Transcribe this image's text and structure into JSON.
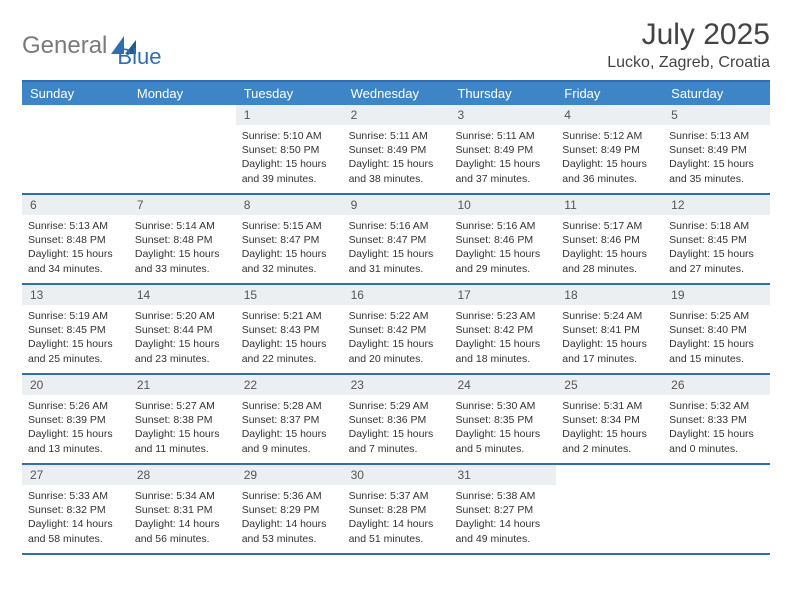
{
  "logo": {
    "gray": "General",
    "blue": "Blue"
  },
  "title": "July 2025",
  "location": "Lucko, Zagreb, Croatia",
  "colors": {
    "header_bg": "#3d85c6",
    "border": "#2f6fb0",
    "daynum_bg": "#eceff1",
    "logo_gray": "#7a7a7a",
    "logo_blue": "#2f6fb0"
  },
  "day_headers": [
    "Sunday",
    "Monday",
    "Tuesday",
    "Wednesday",
    "Thursday",
    "Friday",
    "Saturday"
  ],
  "weeks": [
    [
      {
        "num": "",
        "sunrise": "",
        "sunset": "",
        "daylight": ""
      },
      {
        "num": "",
        "sunrise": "",
        "sunset": "",
        "daylight": ""
      },
      {
        "num": "1",
        "sunrise": "Sunrise: 5:10 AM",
        "sunset": "Sunset: 8:50 PM",
        "daylight": "Daylight: 15 hours and 39 minutes."
      },
      {
        "num": "2",
        "sunrise": "Sunrise: 5:11 AM",
        "sunset": "Sunset: 8:49 PM",
        "daylight": "Daylight: 15 hours and 38 minutes."
      },
      {
        "num": "3",
        "sunrise": "Sunrise: 5:11 AM",
        "sunset": "Sunset: 8:49 PM",
        "daylight": "Daylight: 15 hours and 37 minutes."
      },
      {
        "num": "4",
        "sunrise": "Sunrise: 5:12 AM",
        "sunset": "Sunset: 8:49 PM",
        "daylight": "Daylight: 15 hours and 36 minutes."
      },
      {
        "num": "5",
        "sunrise": "Sunrise: 5:13 AM",
        "sunset": "Sunset: 8:49 PM",
        "daylight": "Daylight: 15 hours and 35 minutes."
      }
    ],
    [
      {
        "num": "6",
        "sunrise": "Sunrise: 5:13 AM",
        "sunset": "Sunset: 8:48 PM",
        "daylight": "Daylight: 15 hours and 34 minutes."
      },
      {
        "num": "7",
        "sunrise": "Sunrise: 5:14 AM",
        "sunset": "Sunset: 8:48 PM",
        "daylight": "Daylight: 15 hours and 33 minutes."
      },
      {
        "num": "8",
        "sunrise": "Sunrise: 5:15 AM",
        "sunset": "Sunset: 8:47 PM",
        "daylight": "Daylight: 15 hours and 32 minutes."
      },
      {
        "num": "9",
        "sunrise": "Sunrise: 5:16 AM",
        "sunset": "Sunset: 8:47 PM",
        "daylight": "Daylight: 15 hours and 31 minutes."
      },
      {
        "num": "10",
        "sunrise": "Sunrise: 5:16 AM",
        "sunset": "Sunset: 8:46 PM",
        "daylight": "Daylight: 15 hours and 29 minutes."
      },
      {
        "num": "11",
        "sunrise": "Sunrise: 5:17 AM",
        "sunset": "Sunset: 8:46 PM",
        "daylight": "Daylight: 15 hours and 28 minutes."
      },
      {
        "num": "12",
        "sunrise": "Sunrise: 5:18 AM",
        "sunset": "Sunset: 8:45 PM",
        "daylight": "Daylight: 15 hours and 27 minutes."
      }
    ],
    [
      {
        "num": "13",
        "sunrise": "Sunrise: 5:19 AM",
        "sunset": "Sunset: 8:45 PM",
        "daylight": "Daylight: 15 hours and 25 minutes."
      },
      {
        "num": "14",
        "sunrise": "Sunrise: 5:20 AM",
        "sunset": "Sunset: 8:44 PM",
        "daylight": "Daylight: 15 hours and 23 minutes."
      },
      {
        "num": "15",
        "sunrise": "Sunrise: 5:21 AM",
        "sunset": "Sunset: 8:43 PM",
        "daylight": "Daylight: 15 hours and 22 minutes."
      },
      {
        "num": "16",
        "sunrise": "Sunrise: 5:22 AM",
        "sunset": "Sunset: 8:42 PM",
        "daylight": "Daylight: 15 hours and 20 minutes."
      },
      {
        "num": "17",
        "sunrise": "Sunrise: 5:23 AM",
        "sunset": "Sunset: 8:42 PM",
        "daylight": "Daylight: 15 hours and 18 minutes."
      },
      {
        "num": "18",
        "sunrise": "Sunrise: 5:24 AM",
        "sunset": "Sunset: 8:41 PM",
        "daylight": "Daylight: 15 hours and 17 minutes."
      },
      {
        "num": "19",
        "sunrise": "Sunrise: 5:25 AM",
        "sunset": "Sunset: 8:40 PM",
        "daylight": "Daylight: 15 hours and 15 minutes."
      }
    ],
    [
      {
        "num": "20",
        "sunrise": "Sunrise: 5:26 AM",
        "sunset": "Sunset: 8:39 PM",
        "daylight": "Daylight: 15 hours and 13 minutes."
      },
      {
        "num": "21",
        "sunrise": "Sunrise: 5:27 AM",
        "sunset": "Sunset: 8:38 PM",
        "daylight": "Daylight: 15 hours and 11 minutes."
      },
      {
        "num": "22",
        "sunrise": "Sunrise: 5:28 AM",
        "sunset": "Sunset: 8:37 PM",
        "daylight": "Daylight: 15 hours and 9 minutes."
      },
      {
        "num": "23",
        "sunrise": "Sunrise: 5:29 AM",
        "sunset": "Sunset: 8:36 PM",
        "daylight": "Daylight: 15 hours and 7 minutes."
      },
      {
        "num": "24",
        "sunrise": "Sunrise: 5:30 AM",
        "sunset": "Sunset: 8:35 PM",
        "daylight": "Daylight: 15 hours and 5 minutes."
      },
      {
        "num": "25",
        "sunrise": "Sunrise: 5:31 AM",
        "sunset": "Sunset: 8:34 PM",
        "daylight": "Daylight: 15 hours and 2 minutes."
      },
      {
        "num": "26",
        "sunrise": "Sunrise: 5:32 AM",
        "sunset": "Sunset: 8:33 PM",
        "daylight": "Daylight: 15 hours and 0 minutes."
      }
    ],
    [
      {
        "num": "27",
        "sunrise": "Sunrise: 5:33 AM",
        "sunset": "Sunset: 8:32 PM",
        "daylight": "Daylight: 14 hours and 58 minutes."
      },
      {
        "num": "28",
        "sunrise": "Sunrise: 5:34 AM",
        "sunset": "Sunset: 8:31 PM",
        "daylight": "Daylight: 14 hours and 56 minutes."
      },
      {
        "num": "29",
        "sunrise": "Sunrise: 5:36 AM",
        "sunset": "Sunset: 8:29 PM",
        "daylight": "Daylight: 14 hours and 53 minutes."
      },
      {
        "num": "30",
        "sunrise": "Sunrise: 5:37 AM",
        "sunset": "Sunset: 8:28 PM",
        "daylight": "Daylight: 14 hours and 51 minutes."
      },
      {
        "num": "31",
        "sunrise": "Sunrise: 5:38 AM",
        "sunset": "Sunset: 8:27 PM",
        "daylight": "Daylight: 14 hours and 49 minutes."
      },
      {
        "num": "",
        "sunrise": "",
        "sunset": "",
        "daylight": ""
      },
      {
        "num": "",
        "sunrise": "",
        "sunset": "",
        "daylight": ""
      }
    ]
  ]
}
